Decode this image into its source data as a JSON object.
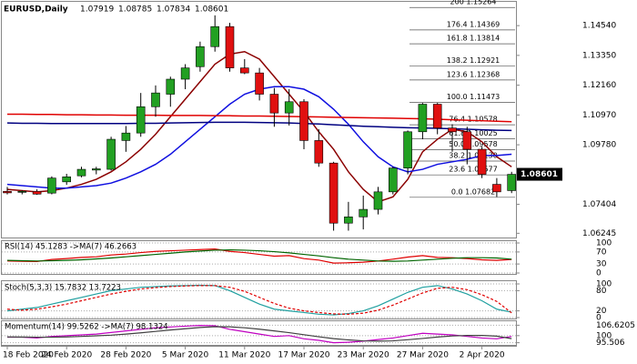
{
  "chart_data": [
    {
      "type": "candlestick",
      "title": "EURUSD,Daily",
      "ohlc_header": [
        1.07919,
        1.08785,
        1.07834,
        1.08601
      ],
      "categories": [
        "18 Feb 2020",
        null,
        null,
        null,
        "24 Feb 2020",
        null,
        null,
        null,
        "28 Feb 2020",
        null,
        null,
        null,
        "5 Mar 2020",
        null,
        null,
        null,
        "11 Mar 2020",
        null,
        null,
        null,
        "17 Mar 2020",
        null,
        null,
        null,
        "23 Mar 2020",
        null,
        null,
        null,
        "27 Mar 2020",
        null,
        null,
        null,
        "2 Apr 2020",
        null,
        null
      ],
      "open": [
        1.0792,
        1.0788,
        1.0792,
        1.0785,
        1.083,
        1.0854,
        1.0877,
        1.088,
        1.0995,
        1.1025,
        1.113,
        1.118,
        1.124,
        1.129,
        1.137,
        1.145,
        1.1285,
        1.1265,
        1.118,
        1.1105,
        1.115,
        1.0995,
        1.0905,
        1.0665,
        1.069,
        1.072,
        1.079,
        1.0885,
        1.103,
        1.114,
        1.1045,
        1.103,
        1.096,
        1.082,
        1.0795
      ],
      "high": [
        1.081,
        1.0796,
        1.08,
        1.0852,
        1.0862,
        1.089,
        1.089,
        1.101,
        1.1053,
        1.1185,
        1.1215,
        1.125,
        1.13,
        1.139,
        1.1495,
        1.1465,
        1.132,
        1.1285,
        1.1205,
        1.12,
        1.116,
        1.104,
        1.091,
        1.075,
        1.0775,
        1.081,
        1.089,
        1.1035,
        1.1145,
        1.1145,
        1.106,
        1.105,
        1.097,
        1.0845,
        1.087
      ],
      "low": [
        1.078,
        1.078,
        1.0778,
        1.078,
        1.0818,
        1.0848,
        1.086,
        1.0875,
        1.095,
        1.101,
        1.109,
        1.113,
        1.12,
        1.127,
        1.135,
        1.127,
        1.126,
        1.1155,
        1.105,
        1.1055,
        1.096,
        1.089,
        1.0635,
        1.0635,
        1.064,
        1.07,
        1.078,
        1.086,
        1.1,
        1.102,
        1.095,
        1.09,
        1.0845,
        1.077,
        1.0785
      ],
      "close": [
        1.0786,
        1.0792,
        1.0781,
        1.0845,
        1.085,
        1.088,
        1.0882,
        1.1,
        1.1025,
        1.113,
        1.1185,
        1.124,
        1.1285,
        1.137,
        1.145,
        1.1285,
        1.1265,
        1.118,
        1.1105,
        1.115,
        1.0995,
        1.0905,
        1.0665,
        1.069,
        1.072,
        1.079,
        1.0885,
        1.103,
        1.114,
        1.1045,
        1.103,
        1.096,
        1.086,
        1.079,
        1.086
      ],
      "up_color": "#22a022",
      "down_color": "#e01010",
      "series": [
        {
          "color": "#8b0000",
          "values": [
            1.08,
            1.0795,
            1.079,
            1.0795,
            1.0805,
            1.082,
            1.084,
            1.087,
            1.091,
            1.096,
            1.102,
            1.109,
            1.116,
            1.123,
            1.13,
            1.134,
            1.135,
            1.132,
            1.125,
            1.118,
            1.111,
            1.103,
            1.096,
            1.087,
            1.08,
            1.075,
            1.077,
            1.084,
            1.095,
            1.1,
            1.104,
            1.103,
            1.099,
            1.093,
            1.089
          ]
        },
        {
          "color": "#1010e0",
          "values": [
            1.082,
            1.0815,
            1.081,
            1.0805,
            1.0805,
            1.081,
            1.0815,
            1.0825,
            1.0845,
            1.087,
            1.09,
            1.094,
            1.099,
            1.104,
            1.109,
            1.114,
            1.118,
            1.12,
            1.121,
            1.121,
            1.12,
            1.117,
            1.112,
            1.106,
            1.099,
            1.093,
            1.089,
            1.087,
            1.088,
            1.09,
            1.091,
            1.092,
            1.0935,
            1.0935,
            1.094
          ]
        },
        {
          "color": "#e00000",
          "values": [
            1.11,
            1.11,
            1.1099,
            1.1099,
            1.1098,
            1.1098,
            1.1097,
            1.1097,
            1.1096,
            1.1096,
            1.1096,
            1.1095,
            1.1095,
            1.1095,
            1.1094,
            1.1094,
            1.1093,
            1.1093,
            1.1092,
            1.1091,
            1.109,
            1.1089,
            1.1088,
            1.1087,
            1.1086,
            1.1085,
            1.1084,
            1.1083,
            1.1082,
            1.108,
            1.1078,
            1.1076,
            1.1074,
            1.1072,
            1.107
          ]
        },
        {
          "color": "#000080",
          "values": [
            1.1065,
            1.1064,
            1.1064,
            1.1063,
            1.1063,
            1.1063,
            1.1063,
            1.1063,
            1.1063,
            1.1064,
            1.1064,
            1.1065,
            1.1066,
            1.1067,
            1.1068,
            1.1068,
            1.1068,
            1.1067,
            1.1066,
            1.1065,
            1.1063,
            1.1061,
            1.1058,
            1.1055,
            1.1052,
            1.105,
            1.1048,
            1.1046,
            1.1045,
            1.1044,
            1.1042,
            1.104,
            1.1038,
            1.1036,
            1.1035
          ]
        }
      ],
      "ylim": [
        1.0604,
        1.1549
      ],
      "yticks": [
        {
          "value": 1.1454,
          "label": "1.14540"
        },
        {
          "value": 1.1335,
          "label": "1.13350"
        },
        {
          "value": 1.1216,
          "label": "1.12160"
        },
        {
          "value": 1.1097,
          "label": "1.10970"
        },
        {
          "value": 1.0978,
          "label": "1.09780"
        },
        1.07404,
        1.06245
      ],
      "last_price": 1.08601,
      "fib_levels": [
        {
          "label": "0.0 1.07682",
          "value": 1.07682
        },
        {
          "label": "23.6 1.08577",
          "value": 1.08577
        },
        {
          "label": "38.2 1.09130",
          "value": 1.0913
        },
        {
          "label": "50.0 1.09578",
          "value": 1.09578
        },
        {
          "label": "61.8 1.10025",
          "value": 1.10025
        },
        {
          "label": "76.4 1.10578",
          "value": 1.10578
        },
        {
          "label": "100.0 1.11473",
          "value": 1.11473
        },
        {
          "label": "123.6 1.12368",
          "value": 1.12368
        },
        {
          "label": "138.2 1.12921",
          "value": 1.12921
        },
        {
          "label": "161.8 1.13814",
          "value": 1.13814
        },
        {
          "label": "176.4 1.14369",
          "value": 1.14369
        },
        {
          "label": "200 1.15264",
          "value": 1.15264
        }
      ]
    },
    {
      "type": "line",
      "title": "RSI(14) 45.1283 ->MA(7) 46.2663",
      "series": [
        {
          "color": "#e00000",
          "values": [
            40,
            39,
            38,
            45,
            48,
            52,
            54,
            60,
            63,
            68,
            72,
            74,
            76,
            78,
            80,
            72,
            68,
            62,
            56,
            58,
            48,
            43,
            33,
            34,
            36,
            40,
            46,
            53,
            58,
            52,
            51,
            48,
            44,
            42,
            45
          ]
        },
        {
          "color": "#006400",
          "values": [
            42,
            41,
            40,
            41,
            42,
            44,
            47,
            50,
            54,
            58,
            62,
            66,
            70,
            73,
            76,
            77,
            76,
            74,
            71,
            67,
            62,
            57,
            51,
            46,
            43,
            40,
            39,
            40,
            43,
            46,
            49,
            51,
            51,
            50,
            46
          ]
        }
      ],
      "ylim": [
        0,
        100
      ],
      "yticks": [
        0,
        30,
        70,
        100
      ]
    },
    {
      "type": "line",
      "title": "Stoch(5,3,3) 15.7832 13.7223",
      "series": [
        {
          "color": "#20a0a0",
          "values": [
            20,
            25,
            30,
            40,
            50,
            60,
            70,
            80,
            85,
            90,
            92,
            94,
            95,
            96,
            95,
            80,
            60,
            40,
            25,
            20,
            15,
            10,
            8,
            12,
            20,
            35,
            55,
            75,
            90,
            95,
            85,
            70,
            50,
            25,
            16
          ]
        },
        {
          "color": "#e00000",
          "dash": true,
          "values": [
            25,
            22,
            25,
            32,
            40,
            50,
            60,
            70,
            78,
            85,
            89,
            92,
            94,
            95,
            95,
            90,
            78,
            60,
            42,
            28,
            20,
            15,
            11,
            10,
            13,
            22,
            37,
            55,
            73,
            87,
            90,
            83,
            68,
            48,
            14
          ]
        }
      ],
      "ylim": [
        0,
        100
      ],
      "yticks": [
        0,
        20,
        80,
        100
      ]
    },
    {
      "type": "line",
      "title": "Momentum(14) 99.5262 ->MA(7) 98.1324",
      "series": [
        {
          "color": "#c000c0",
          "values": [
            99,
            99,
            98.5,
            99.5,
            100,
            100.5,
            101,
            102,
            103,
            104,
            105,
            105.5,
            106,
            106.5,
            106.3,
            104,
            102.5,
            101,
            99.5,
            100,
            98,
            97,
            95.5,
            95.8,
            96.5,
            97.5,
            98.5,
            100,
            101.5,
            101,
            100.5,
            99.5,
            98.5,
            98,
            99.5
          ]
        },
        {
          "color": "#404040",
          "values": [
            99.2,
            99.1,
            99,
            99,
            99.2,
            99.5,
            99.9,
            100.3,
            101,
            101.8,
            102.7,
            103.6,
            104.4,
            105.2,
            105.7,
            105.6,
            105,
            104.1,
            103,
            101.9,
            100.6,
            99.3,
            98.1,
            97.3,
            96.7,
            96.5,
            96.7,
            97.4,
            98.2,
            99.1,
            99.8,
            100.1,
            100.1,
            99.7,
            98.1
          ]
        }
      ],
      "ylim": [
        94.7,
        108
      ],
      "yticks": [
        95.506,
        100,
        106.6205
      ]
    }
  ]
}
